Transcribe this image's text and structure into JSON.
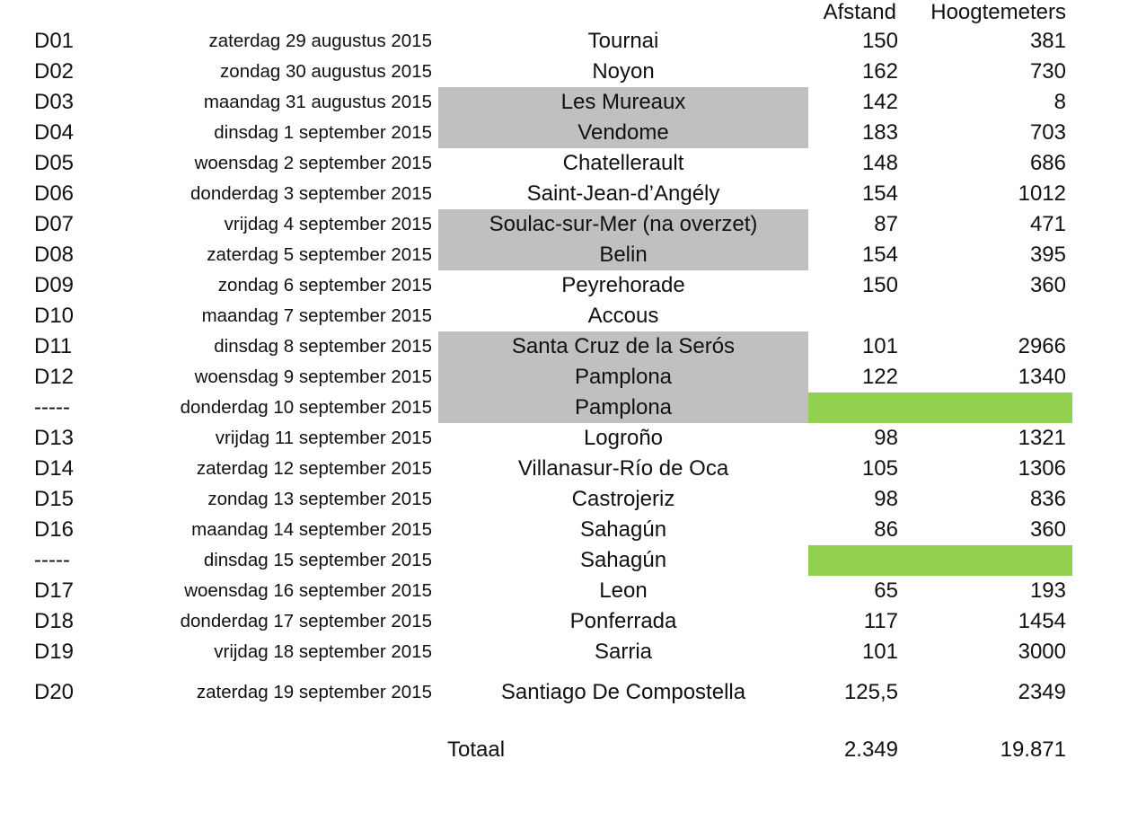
{
  "header": {
    "afstand": "Afstand",
    "hoogtemeters": "Hoogtemeters"
  },
  "rows": [
    {
      "code": "D01",
      "date": "zaterdag 29 augustus 2015",
      "city": "Tournai",
      "dist": "150",
      "elev": "381",
      "gray": false,
      "green": false
    },
    {
      "code": "D02",
      "date": "zondag 30 augustus 2015",
      "city": "Noyon",
      "dist": "162",
      "elev": "730",
      "gray": false,
      "green": false
    },
    {
      "code": "D03",
      "date": "maandag 31 augustus 2015",
      "city": "Les Mureaux",
      "dist": "142",
      "elev": "8",
      "gray": true,
      "green": false
    },
    {
      "code": "D04",
      "date": "dinsdag 1 september 2015",
      "city": "Vendome",
      "dist": "183",
      "elev": "703",
      "gray": true,
      "green": false
    },
    {
      "code": "D05",
      "date": "woensdag 2 september 2015",
      "city": "Chatellerault",
      "dist": "148",
      "elev": "686",
      "gray": false,
      "green": false
    },
    {
      "code": "D06",
      "date": "donderdag 3 september 2015",
      "city": "Saint-Jean-d’Angély",
      "dist": "154",
      "elev": "1012",
      "gray": false,
      "green": false
    },
    {
      "code": "D07",
      "date": "vrijdag 4 september 2015",
      "city": "Soulac-sur-Mer (na overzet)",
      "dist": "87",
      "elev": "471",
      "gray": true,
      "green": false
    },
    {
      "code": "D08",
      "date": "zaterdag 5 september 2015",
      "city": "Belin",
      "dist": "154",
      "elev": "395",
      "gray": true,
      "green": false
    },
    {
      "code": "D09",
      "date": "zondag 6 september 2015",
      "city": "Peyrehorade",
      "dist": "150",
      "elev": "360",
      "gray": false,
      "green": false
    },
    {
      "code": "D10",
      "date": "maandag 7 september 2015",
      "city": "Accous",
      "dist": "",
      "elev": "",
      "gray": false,
      "green": false
    },
    {
      "code": "D11",
      "date": "dinsdag 8 september 2015",
      "city": "Santa Cruz de la Serós",
      "dist": "101",
      "elev": "2966",
      "gray": true,
      "green": false
    },
    {
      "code": "D12",
      "date": "woensdag 9 september 2015",
      "city": "Pamplona",
      "dist": "122",
      "elev": "1340",
      "gray": true,
      "green": false
    },
    {
      "code": "-----",
      "date": "donderdag 10 september 2015",
      "city": "Pamplona",
      "dist": "",
      "elev": "",
      "gray": true,
      "green": true
    },
    {
      "code": "D13",
      "date": "vrijdag 11 september 2015",
      "city": "Logroño",
      "dist": "98",
      "elev": "1321",
      "gray": false,
      "green": false
    },
    {
      "code": "D14",
      "date": "zaterdag 12 september 2015",
      "city": "Villanasur-Río de Oca",
      "dist": "105",
      "elev": "1306",
      "gray": false,
      "green": false
    },
    {
      "code": "D15",
      "date": "zondag 13 september 2015",
      "city": "Castrojeriz",
      "dist": "98",
      "elev": "836",
      "gray": false,
      "green": false
    },
    {
      "code": "D16",
      "date": "maandag 14 september 2015",
      "city": "Sahagún",
      "dist": "86",
      "elev": "360",
      "gray": false,
      "green": false
    },
    {
      "code": "-----",
      "date": "dinsdag 15 september 2015",
      "city": "Sahagún",
      "dist": "",
      "elev": "",
      "gray": false,
      "green": true
    },
    {
      "code": "D17",
      "date": "woensdag 16 september 2015",
      "city": "Leon",
      "dist": "65",
      "elev": "193",
      "gray": false,
      "green": false
    },
    {
      "code": "D18",
      "date": "donderdag 17 september 2015",
      "city": "Ponferrada",
      "dist": "117",
      "elev": "1454",
      "gray": false,
      "green": false
    },
    {
      "code": "D19",
      "date": "vrijdag 18 september 2015",
      "city": "Sarria",
      "dist": "101",
      "elev": "3000",
      "gray": false,
      "green": false
    },
    {
      "code": "D20",
      "date": "zaterdag 19 september 2015",
      "city": "Santiago De Compostella",
      "dist": "125,5",
      "elev": "2349",
      "gray": false,
      "green": false,
      "tall": true
    }
  ],
  "totaal": {
    "label": "Totaal",
    "dist": "2.349",
    "elev": "19.871"
  },
  "colors": {
    "gray": "#c0c0c0",
    "green": "#92d050"
  }
}
